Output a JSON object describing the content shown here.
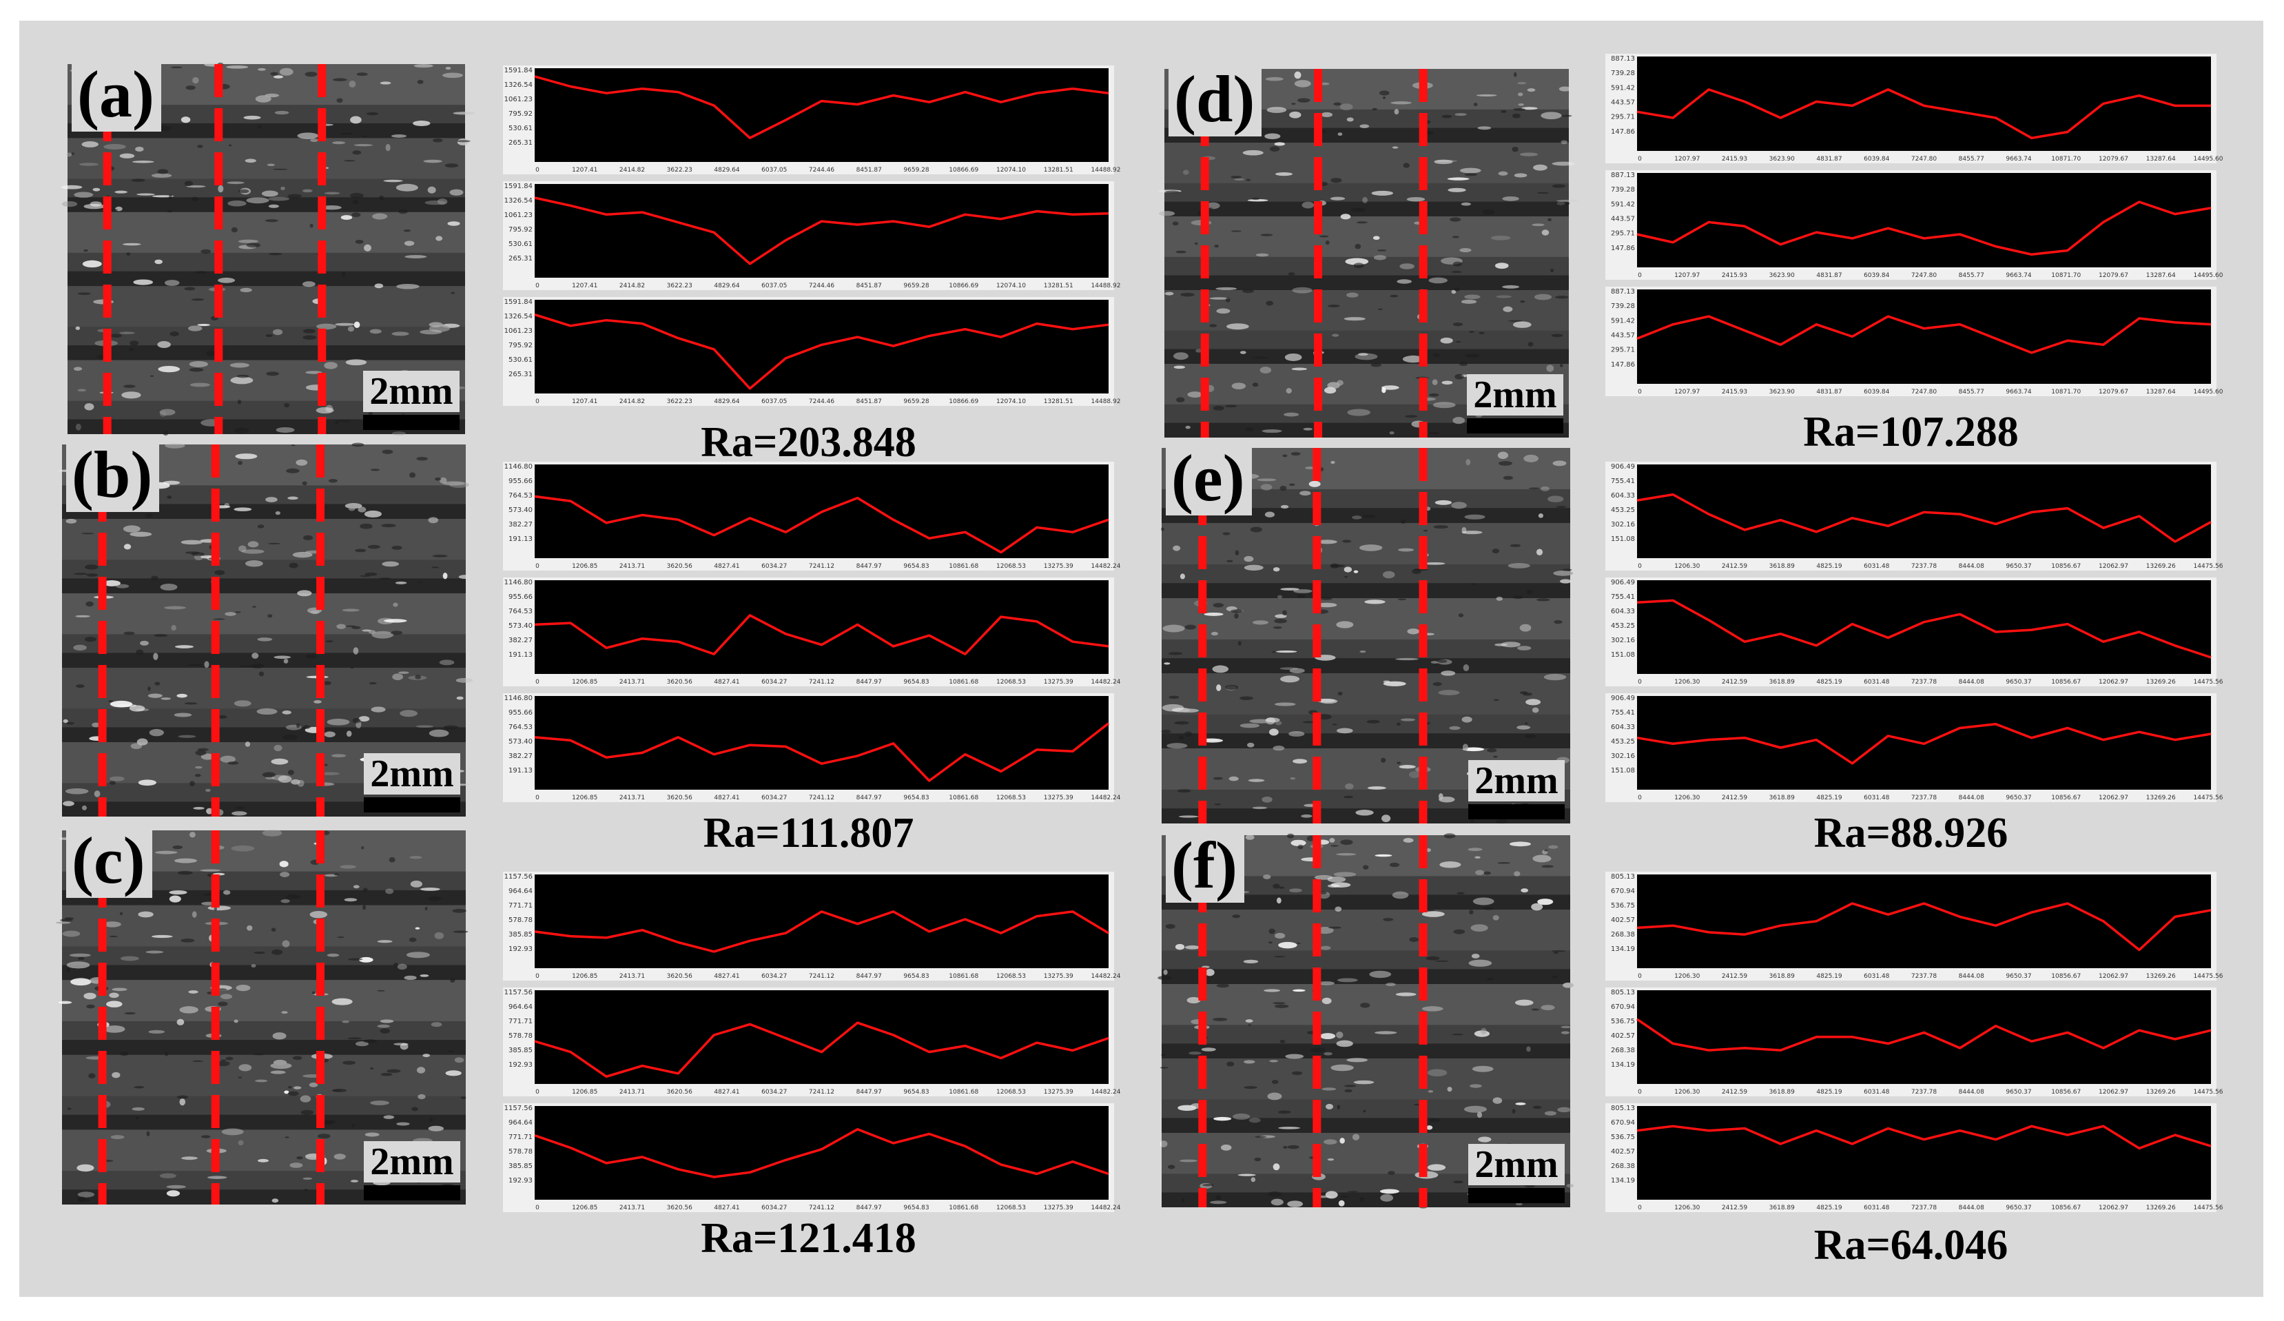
{
  "figure": {
    "scale_label": "2mm",
    "line_color": "#ff1010",
    "background_color": "#d9d9d9"
  },
  "panels": [
    {
      "id": "a",
      "label": "(a)",
      "ra": "Ra=203.848",
      "y_ticks": [
        "1591.84",
        "1326.54",
        "1061.23",
        "795.92",
        "530.61",
        "265.31"
      ],
      "x_ticks": [
        "0",
        "1207.41",
        "2414.82",
        "3622.23",
        "4829.64",
        "6037.05",
        "7244.46",
        "8451.87",
        "9659.28",
        "10866.69",
        "12074.10",
        "13281.51",
        "14488.92"
      ],
      "ymax": 1591.84,
      "profiles": [
        [
          1480,
          1300,
          1180,
          1260,
          1200,
          960,
          380,
          700,
          1040,
          980,
          1140,
          1020,
          1200,
          1020,
          1180,
          1260,
          1180
        ],
        [
          1380,
          1240,
          1080,
          1120,
          940,
          760,
          200,
          620,
          960,
          900,
          960,
          860,
          1080,
          1000,
          1140,
          1080,
          1100
        ],
        [
          1360,
          1160,
          1260,
          1200,
          940,
          740,
          40,
          580,
          820,
          960,
          800,
          980,
          1100,
          960,
          1200,
          1100,
          1180
        ]
      ]
    },
    {
      "id": "b",
      "label": "(b)",
      "ra": "Ra=111.807",
      "y_ticks": [
        "1146.80",
        "955.66",
        "764.53",
        "573.40",
        "382.27",
        "191.13"
      ],
      "x_ticks": [
        "0",
        "1206.85",
        "2413.71",
        "3620.56",
        "4827.41",
        "6034.27",
        "7241.12",
        "8447.97",
        "9654.83",
        "10861.68",
        "12068.53",
        "13275.39",
        "14482.24"
      ],
      "ymax": 1146.8,
      "profiles": [
        [
          760,
          700,
          420,
          520,
          460,
          260,
          480,
          300,
          560,
          740,
          460,
          220,
          300,
          40,
          360,
          300,
          460
        ],
        [
          600,
          620,
          300,
          420,
          380,
          220,
          720,
          480,
          340,
          600,
          320,
          460,
          220,
          700,
          640,
          380,
          320
        ],
        [
          640,
          600,
          380,
          440,
          640,
          420,
          540,
          520,
          300,
          400,
          560,
          80,
          420,
          200,
          480,
          460,
          820
        ]
      ]
    },
    {
      "id": "c",
      "label": "(c)",
      "ra": "Ra=121.418",
      "y_ticks": [
        "1157.56",
        "964.64",
        "771.71",
        "578.78",
        "385.85",
        "192.93"
      ],
      "x_ticks": [
        "0",
        "1206.85",
        "2413.71",
        "3620.56",
        "4827.41",
        "6034.27",
        "7241.12",
        "8447.97",
        "9654.83",
        "10861.68",
        "12068.53",
        "13275.39",
        "14482.24"
      ],
      "ymax": 1157.56,
      "profiles": [
        [
          440,
          380,
          360,
          460,
          300,
          180,
          320,
          420,
          700,
          540,
          700,
          440,
          600,
          420,
          640,
          700,
          420
        ],
        [
          520,
          380,
          60,
          200,
          100,
          600,
          740,
          560,
          380,
          760,
          600,
          380,
          460,
          300,
          500,
          400,
          560
        ],
        [
          800,
          640,
          440,
          520,
          360,
          260,
          320,
          480,
          620,
          880,
          700,
          820,
          660,
          420,
          300,
          460,
          300
        ]
      ]
    },
    {
      "id": "d",
      "label": "(d)",
      "ra": "Ra=107.288",
      "y_ticks": [
        "887.13",
        "739.28",
        "591.42",
        "443.57",
        "295.71",
        "147.86"
      ],
      "x_ticks": [
        "0",
        "1207.97",
        "2415.93",
        "3623.90",
        "4831.87",
        "6039.84",
        "7247.80",
        "8455.77",
        "9663.74",
        "10871.70",
        "12079.67",
        "13287.64",
        "14495.60"
      ],
      "ymax": 887.13,
      "profiles": [
        [
          360,
          300,
          580,
          460,
          300,
          460,
          420,
          580,
          420,
          360,
          300,
          100,
          160,
          440,
          520,
          420,
          420
        ],
        [
          300,
          220,
          420,
          380,
          200,
          320,
          260,
          360,
          260,
          300,
          180,
          100,
          140,
          420,
          620,
          500,
          560
        ],
        [
          420,
          560,
          640,
          500,
          360,
          560,
          440,
          640,
          520,
          560,
          420,
          280,
          400,
          360,
          620,
          580,
          560
        ]
      ]
    },
    {
      "id": "e",
      "label": "(e)",
      "ra": "Ra=88.926",
      "y_ticks": [
        "906.49",
        "755.41",
        "604.33",
        "453.25",
        "302.16",
        "151.08"
      ],
      "x_ticks": [
        "0",
        "1206.30",
        "2412.59",
        "3618.89",
        "4825.19",
        "6031.48",
        "7237.78",
        "8444.08",
        "9650.37",
        "10856.67",
        "12062.97",
        "13269.26",
        "14475.56"
      ],
      "ymax": 906.49,
      "profiles": [
        [
          560,
          620,
          420,
          260,
          360,
          240,
          380,
          300,
          440,
          420,
          320,
          440,
          480,
          280,
          400,
          140,
          340
        ],
        [
          700,
          720,
          520,
          300,
          380,
          260,
          480,
          340,
          500,
          580,
          400,
          420,
          480,
          300,
          400,
          260,
          140
        ],
        [
          500,
          440,
          480,
          500,
          400,
          480,
          240,
          520,
          440,
          600,
          640,
          500,
          600,
          480,
          560,
          480,
          540
        ]
      ]
    },
    {
      "id": "f",
      "label": "(f)",
      "ra": "Ra=64.046",
      "y_ticks": [
        "805.13",
        "670.94",
        "536.75",
        "402.57",
        "268.38",
        "134.19"
      ],
      "x_ticks": [
        "0",
        "1206.30",
        "2412.59",
        "3618.89",
        "4825.19",
        "6031.48",
        "7237.78",
        "8444.08",
        "9650.37",
        "10856.67",
        "12062.97",
        "13269.26",
        "14475.56"
      ],
      "ymax": 805.13,
      "profiles": [
        [
          340,
          360,
          300,
          280,
          360,
          400,
          560,
          460,
          560,
          440,
          360,
          480,
          560,
          400,
          140,
          440,
          500
        ],
        [
          560,
          340,
          280,
          300,
          280,
          400,
          400,
          340,
          440,
          300,
          500,
          360,
          440,
          300,
          460,
          380,
          460
        ],
        [
          600,
          640,
          600,
          620,
          480,
          600,
          480,
          620,
          520,
          600,
          520,
          640,
          560,
          640,
          440,
          560,
          460
        ]
      ]
    }
  ]
}
